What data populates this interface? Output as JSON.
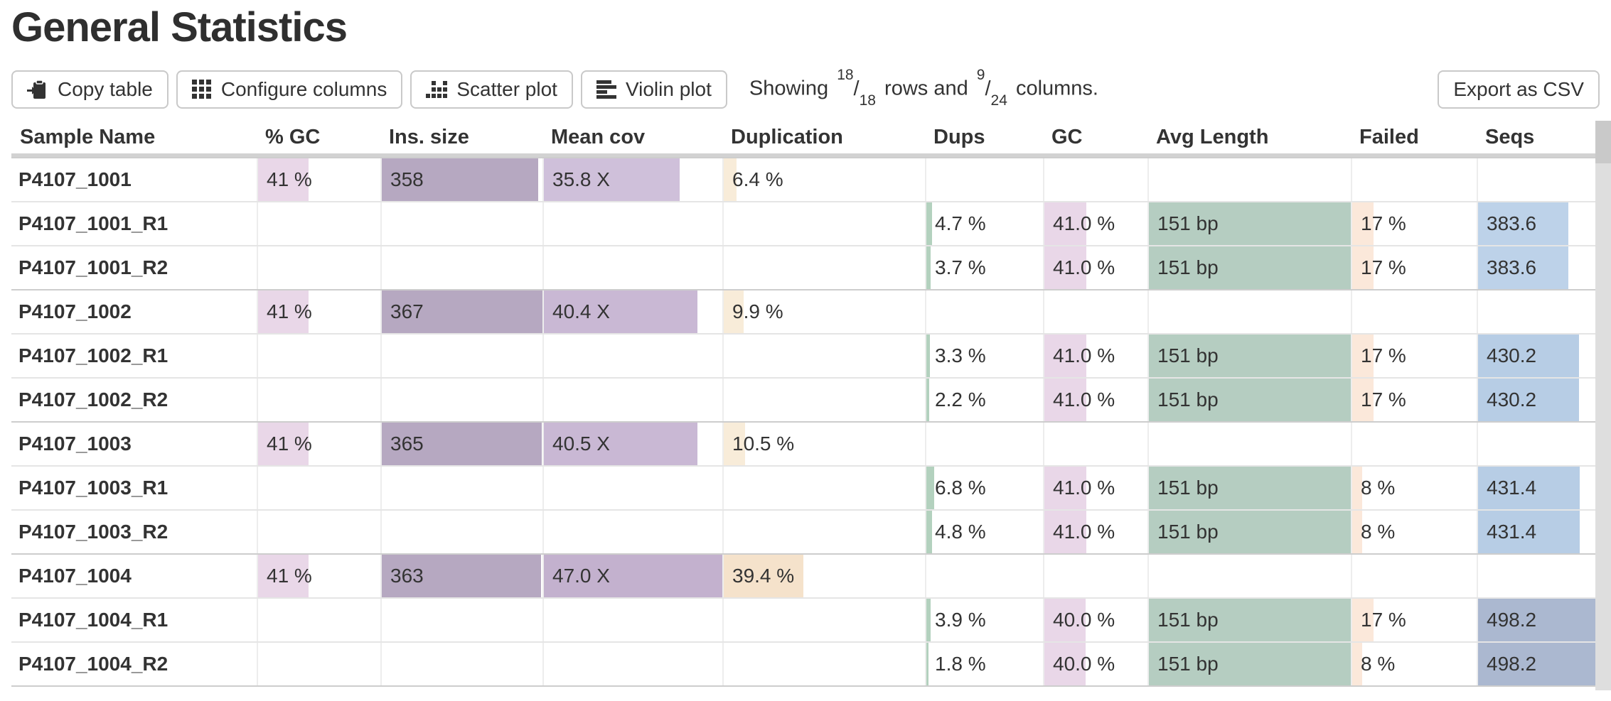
{
  "page": {
    "title": "General Statistics"
  },
  "toolbar": {
    "buttons": [
      {
        "id": "copy-table",
        "label": "Copy table",
        "icon": "clipboard-copy-icon"
      },
      {
        "id": "configure-columns",
        "label": "Configure columns",
        "icon": "grid-icon"
      },
      {
        "id": "scatter-plot",
        "label": "Scatter plot",
        "icon": "scatter-icon"
      },
      {
        "id": "violin-plot",
        "label": "Violin plot",
        "icon": "violin-icon"
      }
    ],
    "showing": {
      "prefix": "Showing",
      "rows_shown": "18",
      "rows_total": "18",
      "mid": "rows and",
      "cols_shown": "9",
      "cols_total": "24",
      "suffix": "columns."
    },
    "export_label": "Export as CSV"
  },
  "ui_colors": {
    "text": "#333333",
    "button_border": "#c9c9c9",
    "header_line": "#d2d2d2",
    "row_line": "#e5e5e5",
    "group_line": "#cdcdcd",
    "scrollbar_track": "#dedede",
    "scrollbar_thumb": "#c9c9c9"
  },
  "table": {
    "columns": [
      {
        "id": "sample",
        "label": "Sample Name"
      },
      {
        "id": "pctgc",
        "label": "% GC"
      },
      {
        "id": "ins",
        "label": "Ins. size"
      },
      {
        "id": "cov",
        "label": "Mean cov"
      },
      {
        "id": "dup",
        "label": "Duplication"
      },
      {
        "id": "dups",
        "label": "Dups"
      },
      {
        "id": "gc",
        "label": "GC"
      },
      {
        "id": "avglen",
        "label": "Avg Length"
      },
      {
        "id": "failed",
        "label": "Failed"
      },
      {
        "id": "seqs",
        "label": "Seqs"
      }
    ],
    "rows": [
      {
        "group_start": true,
        "cells": {
          "sample": {
            "text": "P4107_1001"
          },
          "pctgc": {
            "text": "41 %",
            "bar": 41,
            "color": "#e9d7e8"
          },
          "ins": {
            "text": "358",
            "bar": 97.5,
            "color": "#b6a8c1"
          },
          "cov": {
            "text": "35.8 X",
            "bar": 76,
            "color": "#cfc0da"
          },
          "dup": {
            "text": "6.4 %",
            "bar": 6.4,
            "color": "#f8ecd9"
          }
        }
      },
      {
        "group_start": false,
        "cells": {
          "sample": {
            "text": "P4107_1001_R1"
          },
          "dups": {
            "text": "4.7 %",
            "bar": 4.7,
            "color": "#b3d1be"
          },
          "gc": {
            "text": "41.0 %",
            "bar": 41,
            "color": "#e9d7e8"
          },
          "avglen": {
            "text": "151 bp",
            "bar": 100,
            "color": "#b5cdc1"
          },
          "failed": {
            "text": "17 %",
            "bar": 17,
            "color": "#fbe8da"
          },
          "seqs": {
            "text": "383.6",
            "bar": 77,
            "color": "#bdd2e9"
          }
        }
      },
      {
        "group_start": false,
        "cells": {
          "sample": {
            "text": "P4107_1001_R2"
          },
          "dups": {
            "text": "3.7 %",
            "bar": 3.7,
            "color": "#b3d1be"
          },
          "gc": {
            "text": "41.0 %",
            "bar": 41,
            "color": "#e9d7e8"
          },
          "avglen": {
            "text": "151 bp",
            "bar": 100,
            "color": "#b5cdc1"
          },
          "failed": {
            "text": "17 %",
            "bar": 17,
            "color": "#fbe8da"
          },
          "seqs": {
            "text": "383.6",
            "bar": 77,
            "color": "#bdd2e9"
          }
        }
      },
      {
        "group_start": true,
        "cells": {
          "sample": {
            "text": "P4107_1002"
          },
          "pctgc": {
            "text": "41 %",
            "bar": 41,
            "color": "#e9d7e8"
          },
          "ins": {
            "text": "367",
            "bar": 100,
            "color": "#b6a8c1"
          },
          "cov": {
            "text": "40.4 X",
            "bar": 86,
            "color": "#c9b8d4"
          },
          "dup": {
            "text": "9.9 %",
            "bar": 9.9,
            "color": "#f8ecd9"
          }
        }
      },
      {
        "group_start": false,
        "cells": {
          "sample": {
            "text": "P4107_1002_R1"
          },
          "dups": {
            "text": "3.3 %",
            "bar": 3.3,
            "color": "#b3d1be"
          },
          "gc": {
            "text": "41.0 %",
            "bar": 41,
            "color": "#e9d7e8"
          },
          "avglen": {
            "text": "151 bp",
            "bar": 100,
            "color": "#b5cdc1"
          },
          "failed": {
            "text": "17 %",
            "bar": 17,
            "color": "#fbe8da"
          },
          "seqs": {
            "text": "430.2",
            "bar": 86.3,
            "color": "#b7cde5"
          }
        }
      },
      {
        "group_start": false,
        "cells": {
          "sample": {
            "text": "P4107_1002_R2"
          },
          "dups": {
            "text": "2.2 %",
            "bar": 2.2,
            "color": "#b3d1be"
          },
          "gc": {
            "text": "41.0 %",
            "bar": 41,
            "color": "#e9d7e8"
          },
          "avglen": {
            "text": "151 bp",
            "bar": 100,
            "color": "#b5cdc1"
          },
          "failed": {
            "text": "17 %",
            "bar": 17,
            "color": "#fbe8da"
          },
          "seqs": {
            "text": "430.2",
            "bar": 86.3,
            "color": "#b7cde5"
          }
        }
      },
      {
        "group_start": true,
        "cells": {
          "sample": {
            "text": "P4107_1003"
          },
          "pctgc": {
            "text": "41 %",
            "bar": 41,
            "color": "#e9d7e8"
          },
          "ins": {
            "text": "365",
            "bar": 99.5,
            "color": "#b6a8c1"
          },
          "cov": {
            "text": "40.5 X",
            "bar": 86.2,
            "color": "#c9b8d4"
          },
          "dup": {
            "text": "10.5 %",
            "bar": 10.5,
            "color": "#f8ecd9"
          }
        }
      },
      {
        "group_start": false,
        "cells": {
          "sample": {
            "text": "P4107_1003_R1"
          },
          "dups": {
            "text": "6.8 %",
            "bar": 6.8,
            "color": "#b3d1be"
          },
          "gc": {
            "text": "41.0 %",
            "bar": 41,
            "color": "#e9d7e8"
          },
          "avglen": {
            "text": "151 bp",
            "bar": 100,
            "color": "#b5cdc1"
          },
          "failed": {
            "text": "8 %",
            "bar": 8,
            "color": "#fbe8da"
          },
          "seqs": {
            "text": "431.4",
            "bar": 86.6,
            "color": "#b7cde5"
          }
        }
      },
      {
        "group_start": false,
        "cells": {
          "sample": {
            "text": "P4107_1003_R2"
          },
          "dups": {
            "text": "4.8 %",
            "bar": 4.8,
            "color": "#b3d1be"
          },
          "gc": {
            "text": "41.0 %",
            "bar": 41,
            "color": "#e9d7e8"
          },
          "avglen": {
            "text": "151 bp",
            "bar": 100,
            "color": "#b5cdc1"
          },
          "failed": {
            "text": "8 %",
            "bar": 8,
            "color": "#fbe8da"
          },
          "seqs": {
            "text": "431.4",
            "bar": 86.6,
            "color": "#b7cde5"
          }
        }
      },
      {
        "group_start": true,
        "cells": {
          "sample": {
            "text": "P4107_1004"
          },
          "pctgc": {
            "text": "41 %",
            "bar": 41,
            "color": "#e9d7e8"
          },
          "ins": {
            "text": "363",
            "bar": 98.9,
            "color": "#b6a8c1"
          },
          "cov": {
            "text": "47.0 X",
            "bar": 100,
            "color": "#c3b1ce"
          },
          "dup": {
            "text": "39.4 %",
            "bar": 39.4,
            "color": "#f5e2cb"
          }
        }
      },
      {
        "group_start": false,
        "cells": {
          "sample": {
            "text": "P4107_1004_R1"
          },
          "dups": {
            "text": "3.9 %",
            "bar": 3.9,
            "color": "#b3d1be"
          },
          "gc": {
            "text": "40.0 %",
            "bar": 40,
            "color": "#e9d7e8"
          },
          "avglen": {
            "text": "151 bp",
            "bar": 100,
            "color": "#b5cdc1"
          },
          "failed": {
            "text": "17 %",
            "bar": 17,
            "color": "#fbe8da"
          },
          "seqs": {
            "text": "498.2",
            "bar": 100,
            "color": "#abb8d0"
          }
        }
      },
      {
        "group_start": false,
        "cells": {
          "sample": {
            "text": "P4107_1004_R2"
          },
          "dups": {
            "text": "1.8 %",
            "bar": 1.8,
            "color": "#b3d1be"
          },
          "gc": {
            "text": "40.0 %",
            "bar": 40,
            "color": "#e9d7e8"
          },
          "avglen": {
            "text": "151 bp",
            "bar": 100,
            "color": "#b5cdc1"
          },
          "failed": {
            "text": "8 %",
            "bar": 8,
            "color": "#fbe8da"
          },
          "seqs": {
            "text": "498.2",
            "bar": 100,
            "color": "#abb8d0"
          }
        }
      }
    ]
  }
}
